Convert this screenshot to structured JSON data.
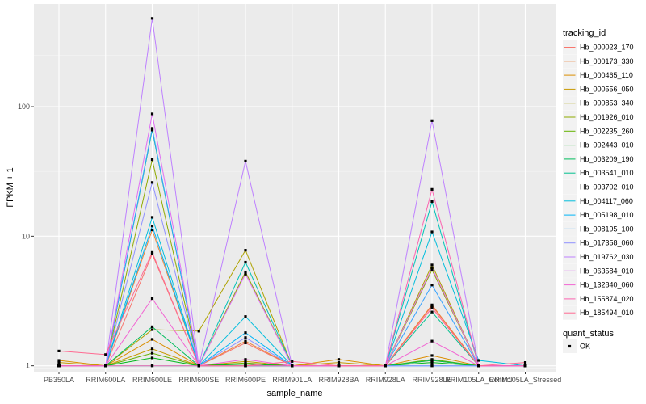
{
  "chart_data": {
    "type": "line",
    "xlabel": "sample_name",
    "ylabel": "FPKM + 1",
    "y_scale": "log10",
    "ylim": [
      0.9,
      620
    ],
    "y_ticks": [
      1,
      10,
      100
    ],
    "y_tick_labels": [
      "1",
      "10",
      "100"
    ],
    "grid": true,
    "legend_position": "right",
    "categories": [
      "PB350LA",
      "RRIM600LA",
      "RRIM600LE",
      "RRIM600SE",
      "RRIM600PE",
      "RRIM901LA",
      "RRIM928BA",
      "RRIM928LA",
      "RRIM928LE",
      "RRIM105LA_Control",
      "RRIM105LA_Stressed"
    ],
    "category_labels": [
      "PB350LA",
      "RRIM600LA",
      "RRIM600LE",
      "RRIM600SE",
      "RRIM600PE",
      "RRIM901LA",
      "RRIM928BA",
      "RRIM928LA",
      "RRIM928LE",
      "RRIM105LA_Control",
      "RRIM105LA_Stressed"
    ],
    "legend_title": "tracking_id",
    "series": [
      {
        "name": "Hb_000023_170",
        "color": "#F8766D",
        "values": [
          1.0,
          1.0,
          7.3,
          1.0,
          1.5,
          1.0,
          1.0,
          1.0,
          2.9,
          1.0,
          1.0
        ]
      },
      {
        "name": "Hb_000173_330",
        "color": "#EC8239",
        "values": [
          1.0,
          1.0,
          11.2,
          1.0,
          1.55,
          1.0,
          1.0,
          1.0,
          2.95,
          1.0,
          1.0
        ]
      },
      {
        "name": "Hb_000465_110",
        "color": "#DB8E00",
        "values": [
          1.1,
          1.0,
          1.6,
          1.0,
          1.0,
          1.0,
          1.12,
          1.0,
          1.2,
          1.0,
          1.0
        ]
      },
      {
        "name": "Hb_000556_050",
        "color": "#C79800",
        "values": [
          1.06,
          1.0,
          1.35,
          1.0,
          1.08,
          1.0,
          1.06,
          1.0,
          1.1,
          1.0,
          1.0
        ]
      },
      {
        "name": "Hb_000853_340",
        "color": "#AEA200",
        "values": [
          1.0,
          1.0,
          1.9,
          1.85,
          7.8,
          1.0,
          1.0,
          1.0,
          6.0,
          1.0,
          1.0
        ]
      },
      {
        "name": "Hb_001926_010",
        "color": "#8FAA00",
        "values": [
          1.0,
          1.0,
          39.0,
          1.0,
          5.3,
          1.0,
          1.0,
          1.0,
          5.5,
          1.0,
          1.0
        ]
      },
      {
        "name": "Hb_002235_260",
        "color": "#64B200",
        "values": [
          1.0,
          1.0,
          1.25,
          1.0,
          1.05,
          1.0,
          1.0,
          1.0,
          1.12,
          1.0,
          1.0
        ]
      },
      {
        "name": "Hb_002443_010",
        "color": "#00B81B",
        "values": [
          1.0,
          1.0,
          1.15,
          1.0,
          1.03,
          1.0,
          1.0,
          1.0,
          1.06,
          1.0,
          1.0
        ]
      },
      {
        "name": "Hb_003209_190",
        "color": "#00BD5C",
        "values": [
          1.0,
          1.0,
          2.0,
          1.0,
          1.0,
          1.0,
          1.0,
          1.0,
          1.1,
          1.0,
          1.0
        ]
      },
      {
        "name": "Hb_003541_010",
        "color": "#00C08E",
        "values": [
          1.0,
          1.0,
          66.0,
          1.0,
          1.0,
          1.0,
          1.0,
          1.0,
          2.6,
          1.0,
          1.0
        ]
      },
      {
        "name": "Hb_003702_010",
        "color": "#00C1B7",
        "values": [
          1.0,
          1.0,
          1.0,
          1.0,
          6.3,
          1.0,
          1.0,
          1.0,
          18.5,
          1.0,
          1.0
        ]
      },
      {
        "name": "Hb_004117_060",
        "color": "#00BDDC",
        "values": [
          1.0,
          1.0,
          14.0,
          1.0,
          2.4,
          1.0,
          1.0,
          1.0,
          10.8,
          1.1,
          1.0
        ]
      },
      {
        "name": "Hb_005198_010",
        "color": "#00B5F8",
        "values": [
          1.0,
          1.0,
          12.0,
          1.0,
          1.8,
          1.0,
          1.0,
          1.0,
          1.0,
          1.0,
          1.0
        ]
      },
      {
        "name": "Hb_008195_100",
        "color": "#35A2FF",
        "values": [
          1.0,
          1.0,
          68.0,
          1.0,
          1.0,
          1.0,
          1.0,
          1.0,
          4.2,
          1.0,
          1.0
        ]
      },
      {
        "name": "Hb_017358_060",
        "color": "#8F91FF",
        "values": [
          1.0,
          1.0,
          26.0,
          1.0,
          1.65,
          1.0,
          1.0,
          1.0,
          1.0,
          1.0,
          1.0
        ]
      },
      {
        "name": "Hb_019762_030",
        "color": "#BE80FF",
        "values": [
          1.0,
          1.0,
          480.0,
          1.0,
          38.0,
          1.0,
          1.0,
          1.0,
          78.0,
          1.0,
          1.0
        ]
      },
      {
        "name": "Hb_063584_010",
        "color": "#E06EF4",
        "values": [
          1.0,
          1.0,
          88.0,
          1.0,
          5.1,
          1.0,
          1.0,
          1.0,
          5.7,
          1.0,
          1.0
        ]
      },
      {
        "name": "Hb_132840_060",
        "color": "#F265D3",
        "values": [
          1.0,
          1.0,
          3.3,
          1.0,
          1.12,
          1.0,
          1.0,
          1.0,
          1.55,
          1.0,
          1.0
        ]
      },
      {
        "name": "Hb_155874_020",
        "color": "#FC63B0",
        "values": [
          1.0,
          1.0,
          1.0,
          1.0,
          1.0,
          1.0,
          1.0,
          1.0,
          23.0,
          1.0,
          1.0
        ]
      },
      {
        "name": "Hb_185494_010",
        "color": "#FF6A92",
        "values": [
          1.3,
          1.22,
          7.5,
          1.0,
          1.0,
          1.08,
          1.0,
          1.0,
          2.8,
          1.0,
          1.06
        ]
      }
    ],
    "shape_legend_title": "quant_status",
    "shape_legend_items": [
      {
        "label": "OK",
        "shape": "square"
      }
    ]
  }
}
